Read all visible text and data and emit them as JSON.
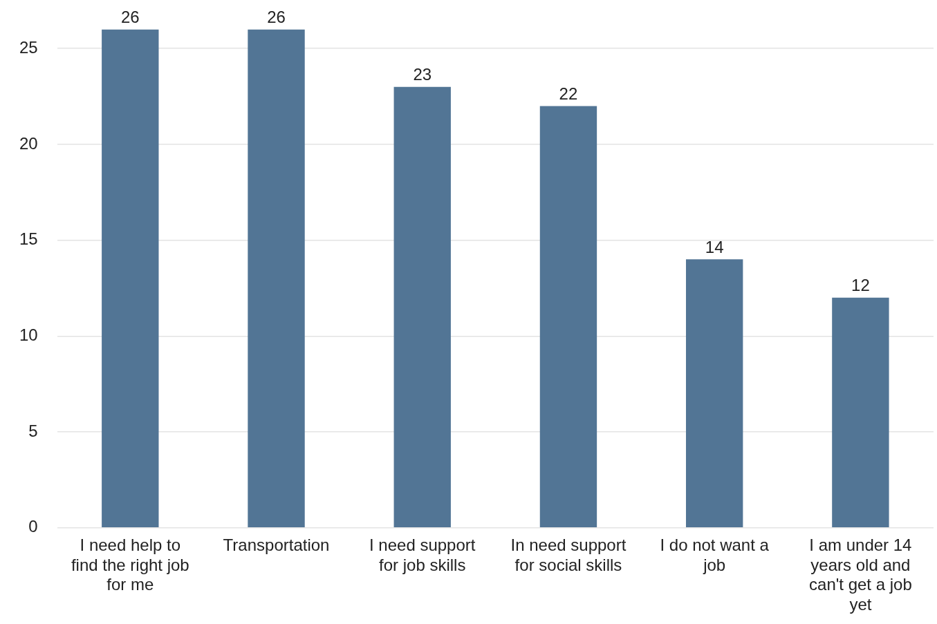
{
  "chart_data": {
    "type": "bar",
    "categories": [
      "I need help to find the right job for me",
      "Transportation",
      "I need support for job skills",
      "In need support for social skills",
      "I do not want a job",
      "I am under 14 years old and can't get a job yet"
    ],
    "values": [
      26,
      26,
      23,
      22,
      14,
      12
    ],
    "color": "#527595",
    "ylim": [
      0,
      26
    ],
    "yticks": [
      0,
      5,
      10,
      15,
      20,
      25
    ],
    "grid": "y",
    "data_labels": true
  }
}
